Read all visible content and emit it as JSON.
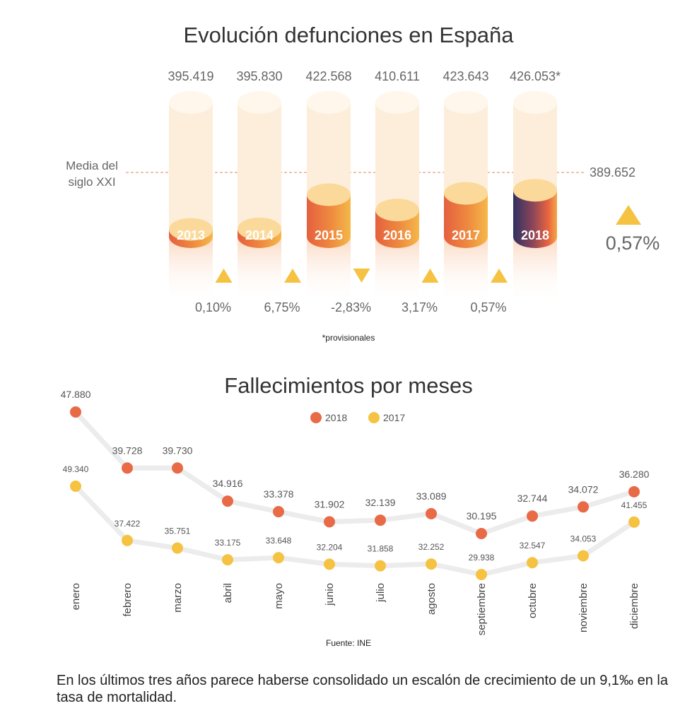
{
  "colors": {
    "orange": "#e86a47",
    "yellow": "#f5c242",
    "cap_light": "#fbd99a",
    "ghost": "#fdeedb",
    "highlight_dark": "#3a3360",
    "media_line": "#e7865c",
    "text_gray": "#666666"
  },
  "top": {
    "title": "Evolución defunciones en España",
    "media_label_line1": "Media del",
    "media_label_line2": "siglo XXI",
    "media_value": "389.652",
    "overall_change": "0,57%",
    "overall_direction": "up",
    "footnote": "*provisionales"
  },
  "bottom": {
    "title": "Fallecimientos por meses",
    "source": "Fuente: INE"
  },
  "conclusion": "En los últimos tres años parece haberse consolidado un escalón de crecimiento de un 9,1‰ en la tasa de mortalidad.",
  "chart_data": [
    {
      "type": "bar",
      "title": "Evolución defunciones en España",
      "categories": [
        "2013",
        "2014",
        "2015",
        "2016",
        "2017",
        "2018"
      ],
      "values": [
        395419,
        395830,
        422568,
        410611,
        423643,
        426053
      ],
      "value_labels": [
        "395.419",
        "395.830",
        "422.568",
        "410.611",
        "423.643",
        "426.053*"
      ],
      "reference_line": {
        "label": "Media del siglo XXI",
        "value": 389652,
        "value_label": "389.652"
      },
      "changes": [
        {
          "label": "0,10%",
          "direction": "up"
        },
        {
          "label": "6,75%",
          "direction": "up"
        },
        {
          "label": "-2,83%",
          "direction": "down"
        },
        {
          "label": "3,17%",
          "direction": "up"
        },
        {
          "label": "0,57%",
          "direction": "up"
        }
      ],
      "highlight_category": "2018"
    },
    {
      "type": "line",
      "title": "Fallecimientos por meses",
      "categories": [
        "enero",
        "febrero",
        "marzo",
        "abril",
        "mayo",
        "junio",
        "julio",
        "agosto",
        "septiembre",
        "octubre",
        "noviembre",
        "diciembre"
      ],
      "series": [
        {
          "name": "2018",
          "color": "#e86a47",
          "values": [
            47880,
            39728,
            39730,
            34916,
            33378,
            31902,
            32139,
            33089,
            30195,
            32744,
            34072,
            36280
          ],
          "labels": [
            "47.880",
            "39.728",
            "39.730",
            "34.916",
            "33.378",
            "31.902",
            "32.139",
            "33.089",
            "30.195",
            "32.744",
            "34.072",
            "36.280"
          ]
        },
        {
          "name": "2017",
          "color": "#f5c242",
          "values": [
            49340,
            37422,
            35751,
            33175,
            33648,
            32204,
            31858,
            32252,
            29938,
            32547,
            34053,
            41455
          ],
          "labels": [
            "49.340",
            "37.422",
            "35.751",
            "33.175",
            "33.648",
            "32.204",
            "31.858",
            "32.252",
            "29.938",
            "32.547",
            "34.053",
            "41.455"
          ]
        }
      ],
      "legend": "top-center",
      "source": "Fuente: INE"
    }
  ]
}
